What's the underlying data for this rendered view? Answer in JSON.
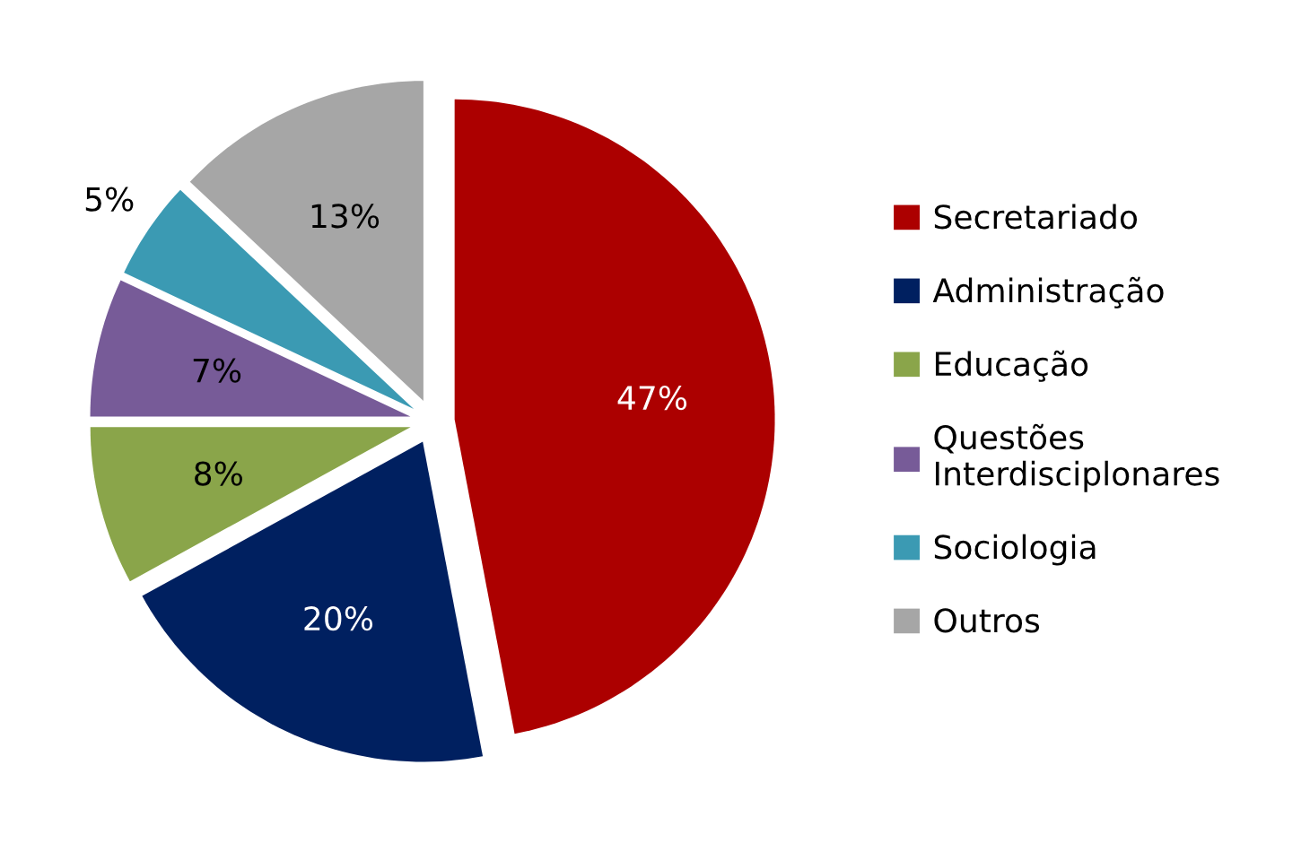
{
  "chart_data": {
    "type": "pie",
    "categories": [
      "Secretariado",
      "Administração",
      "Educação",
      "Questões Interdisciplonares",
      "Sociologia",
      "Outros"
    ],
    "values": [
      47,
      20,
      8,
      7,
      5,
      13
    ],
    "colors": [
      "#ac0000",
      "#002060",
      "#8aa54a",
      "#775b98",
      "#3b9ab3",
      "#a6a6a6"
    ],
    "value_labels": [
      "47%",
      "20%",
      "8%",
      "7%",
      "5%",
      "13%"
    ],
    "legend": "right"
  }
}
